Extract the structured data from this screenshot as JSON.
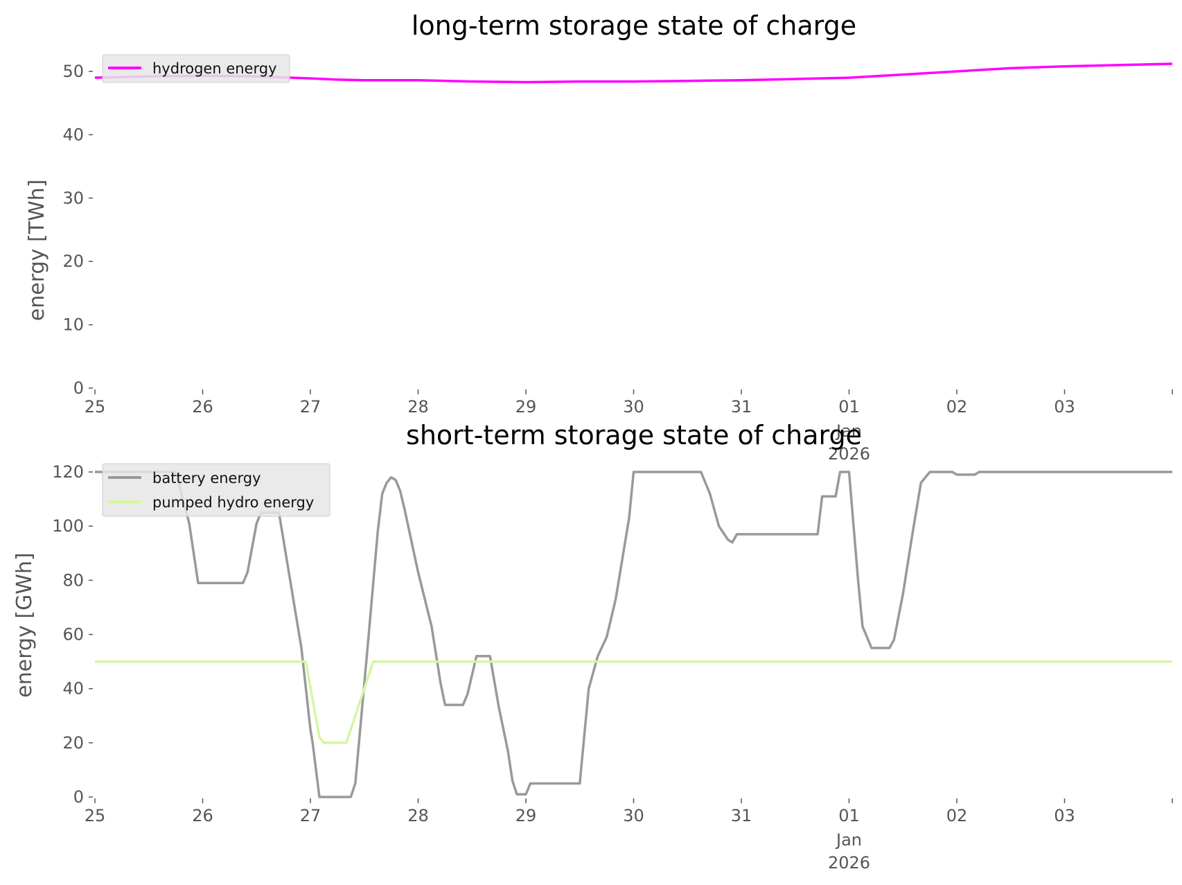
{
  "chart_data": [
    {
      "type": "line",
      "title": "long-term storage state of charge",
      "ylabel": "energy [TWh]",
      "xlabel": "",
      "x_ticks": [
        "25",
        "26",
        "27",
        "28",
        "29",
        "30",
        "31",
        "01",
        "02",
        "03"
      ],
      "x_tick_sublabels": {
        "01": [
          "Jan",
          "2026"
        ]
      },
      "xlim": [
        "2025-12-25",
        "2026-01-04"
      ],
      "ylim": [
        0,
        52
      ],
      "y_ticks": [
        0,
        10,
        20,
        30,
        40,
        50
      ],
      "legend_position": "top-left",
      "grid": false,
      "series": [
        {
          "name": "hydrogen energy",
          "color": "#ff00ff",
          "points": [
            [
              "2025-12-25 00:00",
              49.0
            ],
            [
              "2025-12-25 12:00",
              49.2
            ],
            [
              "2025-12-26 00:00",
              49.3
            ],
            [
              "2025-12-26 12:00",
              49.2
            ],
            [
              "2025-12-27 00:00",
              48.9
            ],
            [
              "2025-12-27 06:00",
              48.7
            ],
            [
              "2025-12-27 12:00",
              48.6
            ],
            [
              "2025-12-28 00:00",
              48.6
            ],
            [
              "2025-12-28 12:00",
              48.4
            ],
            [
              "2025-12-29 00:00",
              48.3
            ],
            [
              "2025-12-29 12:00",
              48.4
            ],
            [
              "2025-12-30 00:00",
              48.4
            ],
            [
              "2025-12-30 12:00",
              48.5
            ],
            [
              "2025-12-31 00:00",
              48.6
            ],
            [
              "2025-12-31 12:00",
              48.8
            ],
            [
              "2026-01-01 00:00",
              49.0
            ],
            [
              "2026-01-01 12:00",
              49.5
            ],
            [
              "2026-01-02 00:00",
              50.0
            ],
            [
              "2026-01-02 12:00",
              50.5
            ],
            [
              "2026-01-03 00:00",
              50.8
            ],
            [
              "2026-01-03 12:00",
              51.0
            ],
            [
              "2026-01-04 00:00",
              51.2
            ]
          ]
        }
      ]
    },
    {
      "type": "line",
      "title": "short-term storage state of charge",
      "ylabel": "energy [GWh]",
      "xlabel": "",
      "x_ticks": [
        "25",
        "26",
        "27",
        "28",
        "29",
        "30",
        "31",
        "01",
        "02",
        "03"
      ],
      "x_tick_sublabels": {
        "01": [
          "Jan",
          "2026"
        ]
      },
      "xlim": [
        "2025-12-25",
        "2026-01-04"
      ],
      "ylim": [
        0,
        120
      ],
      "y_ticks": [
        0,
        20,
        40,
        60,
        80,
        100,
        120
      ],
      "legend_position": "top-left",
      "grid": false,
      "series": [
        {
          "name": "battery energy",
          "color": "#999999",
          "points": [
            [
              "2025-12-25 00:00",
              120
            ],
            [
              "2025-12-25 18:00",
              120
            ],
            [
              "2025-12-25 21:00",
              101
            ],
            [
              "2025-12-25 23:00",
              79
            ],
            [
              "2025-12-26 09:00",
              79
            ],
            [
              "2025-12-26 10:00",
              83
            ],
            [
              "2025-12-26 12:00",
              101
            ],
            [
              "2025-12-26 13:00",
              105
            ],
            [
              "2025-12-26 17:00",
              105
            ],
            [
              "2025-12-26 22:00",
              55
            ],
            [
              "2025-12-27 00:00",
              25
            ],
            [
              "2025-12-27 00:30",
              20
            ],
            [
              "2025-12-27 02:00",
              0
            ],
            [
              "2025-12-27 09:00",
              0
            ],
            [
              "2025-12-27 10:00",
              5
            ],
            [
              "2025-12-27 13:00",
              60
            ],
            [
              "2025-12-27 15:00",
              98
            ],
            [
              "2025-12-27 16:00",
              112
            ],
            [
              "2025-12-27 17:00",
              116
            ],
            [
              "2025-12-27 18:00",
              118
            ],
            [
              "2025-12-27 19:00",
              117
            ],
            [
              "2025-12-27 20:00",
              113
            ],
            [
              "2025-12-27 21:00",
              106
            ],
            [
              "2025-12-28 00:00",
              83
            ],
            [
              "2025-12-28 03:00",
              63
            ],
            [
              "2025-12-28 05:00",
              42
            ],
            [
              "2025-12-28 06:00",
              34
            ],
            [
              "2025-12-28 10:00",
              34
            ],
            [
              "2025-12-28 11:00",
              38
            ],
            [
              "2025-12-28 13:00",
              52
            ],
            [
              "2025-12-28 16:00",
              52
            ],
            [
              "2025-12-28 18:00",
              33
            ],
            [
              "2025-12-28 20:00",
              17
            ],
            [
              "2025-12-28 21:00",
              6
            ],
            [
              "2025-12-28 22:00",
              1
            ],
            [
              "2025-12-29 00:00",
              1
            ],
            [
              "2025-12-29 01:00",
              5
            ],
            [
              "2025-12-29 12:00",
              5
            ],
            [
              "2025-12-29 14:00",
              40
            ],
            [
              "2025-12-29 16:00",
              52
            ],
            [
              "2025-12-29 18:00",
              59
            ],
            [
              "2025-12-29 20:00",
              73
            ],
            [
              "2025-12-29 23:00",
              103
            ],
            [
              "2025-12-30 00:00",
              120
            ],
            [
              "2025-12-30 15:00",
              120
            ],
            [
              "2025-12-30 17:00",
              112
            ],
            [
              "2025-12-30 19:00",
              100
            ],
            [
              "2025-12-30 21:00",
              95
            ],
            [
              "2025-12-30 22:00",
              94
            ],
            [
              "2025-12-30 23:00",
              97
            ],
            [
              "2025-12-31 17:00",
              97
            ],
            [
              "2025-12-31 18:00",
              111
            ],
            [
              "2025-12-31 21:00",
              111
            ],
            [
              "2025-12-31 22:00",
              120
            ],
            [
              "2026-01-01 00:00",
              120
            ],
            [
              "2026-01-01 02:00",
              80
            ],
            [
              "2026-01-01 03:00",
              63
            ],
            [
              "2026-01-01 05:00",
              55
            ],
            [
              "2026-01-01 09:00",
              55
            ],
            [
              "2026-01-01 10:00",
              58
            ],
            [
              "2026-01-01 12:00",
              75
            ],
            [
              "2026-01-01 14:00",
              96
            ],
            [
              "2026-01-01 16:00",
              116
            ],
            [
              "2026-01-01 18:00",
              120
            ],
            [
              "2026-01-01 23:00",
              120
            ],
            [
              "2026-01-02 00:00",
              119
            ],
            [
              "2026-01-02 04:00",
              119
            ],
            [
              "2026-01-02 05:00",
              120
            ],
            [
              "2026-01-04 00:00",
              120
            ]
          ]
        },
        {
          "name": "pumped hydro energy",
          "color": "#d4f7a0",
          "points": [
            [
              "2025-12-25 00:00",
              50
            ],
            [
              "2025-12-26 23:00",
              50
            ],
            [
              "2025-12-27 02:00",
              22
            ],
            [
              "2025-12-27 03:00",
              20
            ],
            [
              "2025-12-27 08:00",
              20
            ],
            [
              "2025-12-27 10:00",
              30
            ],
            [
              "2025-12-27 13:00",
              45
            ],
            [
              "2025-12-27 14:00",
              50
            ],
            [
              "2026-01-04 00:00",
              50
            ]
          ]
        }
      ]
    }
  ]
}
